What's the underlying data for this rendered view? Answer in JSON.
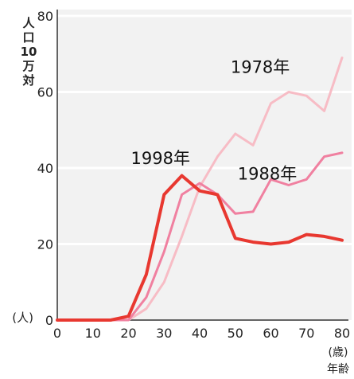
{
  "chart_data": {
    "type": "line",
    "title": "",
    "ylabel": "人口10万対",
    "y_unit": "(人)",
    "x_unit": "(歳)",
    "xlabel": "年齢",
    "xlim": [
      0,
      80
    ],
    "ylim": [
      0,
      80
    ],
    "x_ticks": [
      0,
      10,
      20,
      30,
      40,
      50,
      60,
      70,
      80
    ],
    "y_ticks": [
      0,
      20,
      40,
      60,
      80
    ],
    "grid": "horizontal",
    "colors": {
      "background": "#f2f2f2",
      "grid": "#ffffff",
      "axis": "#333333"
    },
    "series": [
      {
        "name": "1978年",
        "color": "#f7bcc5",
        "width": 3,
        "x": [
          0,
          5,
          10,
          15,
          20,
          25,
          30,
          35,
          40,
          45,
          50,
          55,
          60,
          65,
          70,
          75,
          80
        ],
        "values": [
          0,
          0,
          0,
          0,
          0,
          3,
          10,
          22,
          35,
          43,
          49,
          46,
          57,
          60,
          59,
          55,
          69
        ]
      },
      {
        "name": "1988年",
        "color": "#f080a0",
        "width": 3,
        "x": [
          0,
          5,
          10,
          15,
          20,
          25,
          30,
          35,
          40,
          45,
          50,
          55,
          60,
          65,
          70,
          75,
          80
        ],
        "values": [
          0,
          0,
          0,
          0,
          0,
          6,
          18,
          33,
          36,
          33,
          28,
          28.5,
          37,
          35.5,
          37,
          43,
          44
        ]
      },
      {
        "name": "1998年",
        "color": "#e83830",
        "width": 4,
        "x": [
          0,
          5,
          10,
          15,
          20,
          25,
          30,
          35,
          40,
          45,
          50,
          55,
          60,
          65,
          70,
          75,
          80
        ],
        "values": [
          0,
          0,
          0,
          0,
          1,
          12,
          33,
          38,
          34,
          33,
          21.5,
          20.5,
          20,
          20.5,
          22.5,
          22,
          21
        ]
      }
    ],
    "annotations": [
      {
        "text": "1978年",
        "x": 57,
        "y": 65
      },
      {
        "text": "1988年",
        "x": 59,
        "y": 37
      },
      {
        "text": "1998年",
        "x": 29,
        "y": 41
      }
    ]
  }
}
